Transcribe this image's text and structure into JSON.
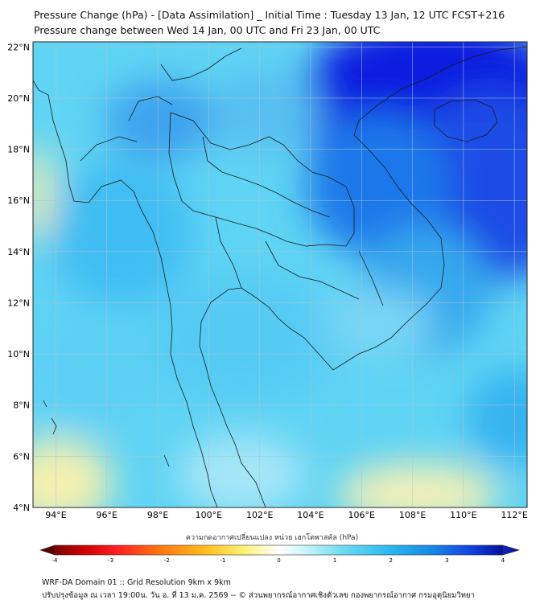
{
  "header": {
    "title": "Pressure Change (hPa) - [Data Assimilation] _ Initial Time : Tuesday 13 Jan, 12 UTC FCST+216",
    "subtitle": "Pressure change between Wed 14 Jan, 00 UTC and Fri 23 Jan, 00 UTC"
  },
  "map": {
    "lat_labels": [
      "22°N",
      "20°N",
      "18°N",
      "16°N",
      "14°N",
      "12°N",
      "10°N",
      "8°N",
      "6°N",
      "4°N"
    ],
    "lon_labels": [
      "94°E",
      "96°E",
      "98°E",
      "100°E",
      "102°E",
      "104°E",
      "106°E",
      "108°E",
      "110°E",
      "112°E"
    ],
    "lat_range": [
      4,
      22.2
    ],
    "lon_range": [
      93.1,
      112.5
    ],
    "colors": {
      "strong_rise": "#1a2fe0",
      "moderate_rise": "#2fa6ee",
      "slight_rise": "#7fdcf6",
      "near_zero": "#f6f0a8",
      "coastline": "#1a1a1a",
      "grid": "#b0c4d0"
    }
  },
  "colorbar": {
    "title": "ความกดอากาศเปลี่ยนแปลง หน่วย เฮกโตพาสคัล (hPa)",
    "ticks": [
      "-4",
      "-3",
      "-2",
      "-1",
      "0",
      "1",
      "2",
      "3",
      "4"
    ],
    "range": [
      -4,
      4
    ]
  },
  "footer": {
    "line1": "WRF-DA Domain 01 :: Grid Resolution 9km x 9km",
    "line2": "ปรับปรุงข้อมูล ณ เวลา 19:00น. วัน อ. ที่ 13 ม.ค. 2569 -- © ส่วนพยากรณ์อากาศเชิงตัวเลข กองพยากรณ์อากาศ กรมอุตุนิยมวิทยา"
  }
}
